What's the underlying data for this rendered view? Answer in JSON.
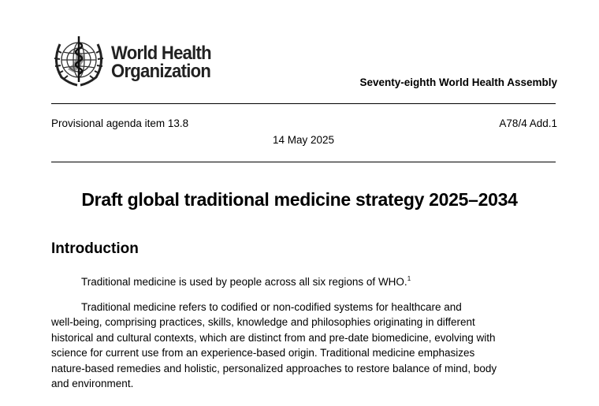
{
  "logo": {
    "line1": "World Health",
    "line2": "Organization",
    "emblem": "who-emblem"
  },
  "header": {
    "assembly": "Seventy-eighth World Health Assembly"
  },
  "meta": {
    "agenda_item": "Provisional agenda item 13.8",
    "doc_number": "A78/4 Add.1",
    "date": "14 May 2025"
  },
  "document": {
    "title": "Draft global traditional medicine strategy 2025–2034",
    "section_heading": "Introduction",
    "paragraph1": {
      "text": "Traditional medicine is used by people across all six regions of WHO.",
      "footnote": "1"
    },
    "paragraph2": {
      "lines": [
        "Traditional medicine refers to codified or non-codified systems for healthcare and",
        "well-being, comprising practices, skills, knowledge and philosophies originating in different",
        "historical and cultural contexts, which are distinct from and pre-date biomedicine, evolving with",
        "science for current use from an experience-based origin. Traditional medicine emphasizes",
        "nature-based remedies and holistic, personalized approaches to restore balance of mind, body",
        "and environment."
      ]
    }
  }
}
